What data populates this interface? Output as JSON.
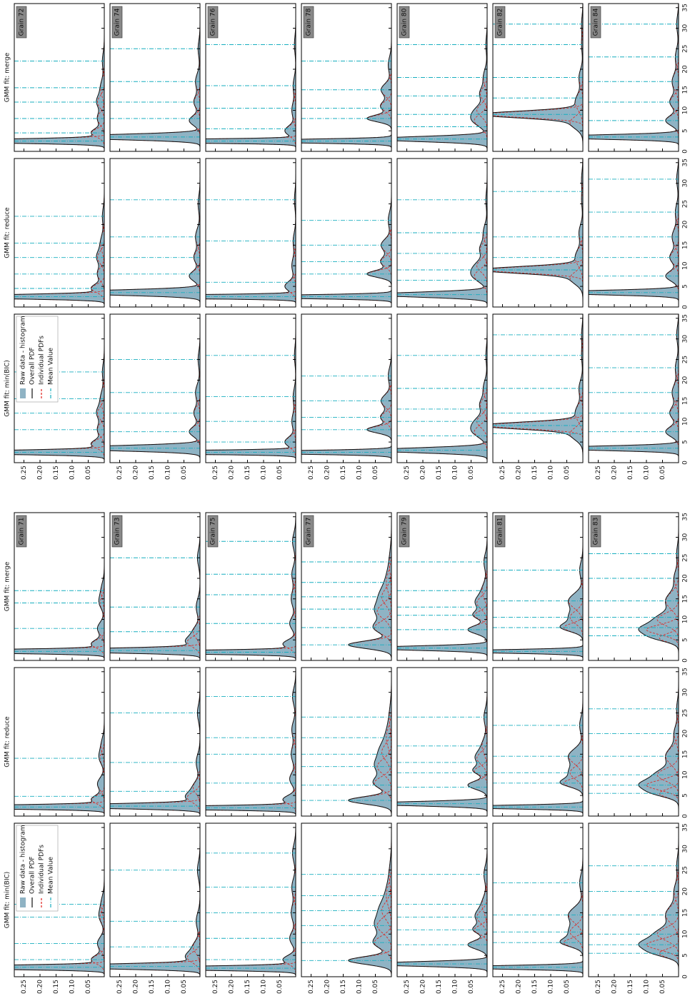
{
  "chart_data": {
    "type": "gmm-grid",
    "methods": [
      "GMM fit: min(BIC)",
      "GMM fit: reduce",
      "GMM fit: merge"
    ],
    "legend": [
      "Raw data - histogram",
      "Overall PDF",
      "Individual PDFs",
      "Mean Value"
    ],
    "colors": {
      "histogram": "#8fb3c4",
      "overall": "#111111",
      "component": "#e0201b",
      "mean": "#17aebf"
    },
    "xlim": [
      0,
      36
    ],
    "xticks": [
      0,
      5,
      10,
      15,
      20,
      25,
      30,
      35
    ],
    "ylim": [
      0,
      0.28
    ],
    "yticks": [
      0.05,
      {
        "value": 0.1,
        "label": "0.10"
      },
      0.15,
      {
        "value": 0.2,
        "label": "0.20"
      },
      0.25
    ],
    "grains": [
      {
        "label": "Grain 71",
        "components": [
          [
            2.2,
            0.4,
            0.72
          ],
          [
            4,
            1,
            0.1
          ],
          [
            7.8,
            1.5,
            0.08
          ],
          [
            14,
            1.5,
            0.05
          ],
          [
            17,
            2,
            0.05
          ]
        ],
        "means": [
          [
            2.2,
            4,
            7.8,
            14,
            17
          ],
          [
            2.2,
            4.8,
            14
          ],
          [
            2.2,
            7.8,
            14,
            17
          ]
        ]
      },
      {
        "label": "Grain 73",
        "components": [
          [
            2.4,
            0.5,
            0.7
          ],
          [
            4.5,
            1.2,
            0.12
          ],
          [
            7,
            1.5,
            0.08
          ],
          [
            13,
            2,
            0.06
          ],
          [
            25,
            2,
            0.04
          ]
        ],
        "means": [
          [
            2.4,
            7,
            13,
            25
          ],
          [
            2.4,
            6,
            13,
            25
          ],
          [
            2.4,
            7,
            13,
            25
          ]
        ]
      },
      {
        "label": "Grain 75",
        "components": [
          [
            2,
            0.4,
            0.65
          ],
          [
            4,
            1,
            0.1
          ],
          [
            9,
            1.5,
            0.07
          ],
          [
            15,
            2,
            0.07
          ],
          [
            21,
            2,
            0.06
          ],
          [
            29,
            2,
            0.05
          ]
        ],
        "means": [
          [
            2,
            4,
            9,
            15,
            21,
            29
          ],
          [
            2,
            8,
            15,
            19,
            29
          ],
          [
            2,
            9,
            16,
            21,
            29
          ]
        ]
      },
      {
        "label": "Grain 77",
        "components": [
          [
            3.8,
            0.9,
            0.3
          ],
          [
            8,
            1.5,
            0.2
          ],
          [
            12,
            1.8,
            0.2
          ],
          [
            15.5,
            2,
            0.15
          ],
          [
            19,
            2.5,
            0.1
          ],
          [
            24,
            3,
            0.05
          ]
        ],
        "means": [
          [
            3.8,
            8,
            12,
            15.5,
            19,
            24
          ],
          [
            3.8,
            7.5,
            12,
            15,
            19,
            24
          ],
          [
            3.8,
            8,
            12.5,
            15.5,
            19,
            24
          ]
        ]
      },
      {
        "label": "Grain 79",
        "components": [
          [
            3,
            0.5,
            0.5
          ],
          [
            7.5,
            1,
            0.15
          ],
          [
            11,
            1,
            0.1
          ],
          [
            14,
            1.5,
            0.12
          ],
          [
            17,
            2,
            0.08
          ],
          [
            24,
            2,
            0.05
          ]
        ],
        "means": [
          [
            3,
            7.5,
            11,
            14,
            17,
            24
          ],
          [
            3,
            7,
            10.5,
            13,
            17,
            24
          ],
          [
            3,
            7.5,
            11,
            13,
            17,
            24
          ]
        ]
      },
      {
        "label": "Grain 81",
        "components": [
          [
            2.2,
            0.4,
            0.45
          ],
          [
            8,
            1,
            0.15
          ],
          [
            10.5,
            1.5,
            0.15
          ],
          [
            14.5,
            1.8,
            0.2
          ],
          [
            22,
            2,
            0.05
          ]
        ],
        "means": [
          [
            2.2,
            8,
            10.5,
            14.5,
            22
          ],
          [
            2.2,
            8,
            10.5,
            14.5,
            22
          ],
          [
            2.2,
            8,
            10.5,
            14.5,
            22
          ]
        ]
      },
      {
        "label": "Grain 83",
        "components": [
          [
            7.5,
            1.2,
            0.3
          ],
          [
            5.5,
            1,
            0.15
          ],
          [
            10,
            1.5,
            0.25
          ],
          [
            14.5,
            2,
            0.2
          ],
          [
            20,
            2,
            0.07
          ],
          [
            26,
            2,
            0.03
          ]
        ],
        "means": [
          [
            5.5,
            7.5,
            10,
            14.5,
            20,
            26
          ],
          [
            5.5,
            7.5,
            10,
            14.5,
            20,
            26
          ],
          [
            6,
            8,
            10.5,
            14.5,
            20,
            26
          ]
        ]
      },
      {
        "label": "Grain 72",
        "components": [
          [
            2.5,
            0.45,
            0.65
          ],
          [
            4.5,
            1,
            0.1
          ],
          [
            8,
            1.5,
            0.08
          ],
          [
            12,
            1.5,
            0.08
          ],
          [
            15.5,
            2,
            0.06
          ],
          [
            22,
            2,
            0.03
          ]
        ],
        "means": [
          [
            2.5,
            8,
            12,
            15.5,
            22
          ],
          [
            2.5,
            4.5,
            8,
            12,
            15.5,
            22
          ],
          [
            2.5,
            4.5,
            8,
            12,
            15.5,
            22
          ]
        ]
      },
      {
        "label": "Grain 74",
        "components": [
          [
            3.5,
            0.6,
            0.7
          ],
          [
            7.5,
            1.2,
            0.1
          ],
          [
            12,
            1.5,
            0.07
          ],
          [
            17,
            2,
            0.07
          ],
          [
            25,
            2,
            0.03
          ]
        ],
        "means": [
          [
            3.5,
            7.5,
            12,
            17,
            25
          ],
          [
            3.5,
            8,
            12,
            17,
            26
          ],
          [
            3.5,
            8,
            12,
            17,
            25
          ]
        ]
      },
      {
        "label": "Grain 76",
        "components": [
          [
            2.5,
            0.35,
            0.8
          ],
          [
            5,
            1.2,
            0.1
          ],
          [
            10,
            2,
            0.06
          ],
          [
            16,
            2,
            0.04
          ],
          [
            26,
            2,
            0.02
          ]
        ],
        "means": [
          [
            2.5,
            5,
            10,
            16,
            26
          ],
          [
            2.5,
            6,
            16,
            26
          ],
          [
            2.5,
            5.5,
            10.5,
            16,
            26
          ]
        ]
      },
      {
        "label": "Grain 78",
        "components": [
          [
            2.5,
            0.4,
            0.55
          ],
          [
            8,
            0.8,
            0.15
          ],
          [
            11,
            1.2,
            0.1
          ],
          [
            15,
            1.5,
            0.12
          ],
          [
            21,
            2,
            0.05
          ]
        ],
        "means": [
          [
            2.5,
            8,
            11,
            15,
            21
          ],
          [
            2.5,
            8,
            11,
            15,
            21
          ],
          [
            2.5,
            8,
            10.5,
            15,
            22
          ]
        ]
      },
      {
        "label": "Grain 80",
        "components": [
          [
            3,
            0.6,
            0.55
          ],
          [
            7.5,
            1.5,
            0.15
          ],
          [
            10,
            1.5,
            0.12
          ],
          [
            14,
            1.5,
            0.08
          ],
          [
            18,
            2,
            0.06
          ],
          [
            26,
            2,
            0.02
          ]
        ],
        "means": [
          [
            3,
            6.5,
            10,
            13,
            18,
            26
          ],
          [
            3,
            6.5,
            9,
            13,
            18,
            26
          ],
          [
            3,
            6,
            9,
            13.5,
            18,
            26
          ]
        ]
      },
      {
        "label": "Grain 82",
        "components": [
          [
            9,
            0.8,
            0.6
          ],
          [
            7,
            1.5,
            0.15
          ],
          [
            12,
            2,
            0.12
          ],
          [
            18,
            2,
            0.06
          ],
          [
            26,
            2,
            0.02
          ],
          [
            31,
            2,
            0.02
          ]
        ],
        "means": [
          [
            7,
            9,
            12,
            18,
            26,
            31
          ],
          [
            9,
            12,
            17,
            28
          ],
          [
            9,
            13,
            18,
            26,
            31
          ]
        ]
      },
      {
        "label": "Grain 84",
        "components": [
          [
            3.5,
            0.5,
            0.55
          ],
          [
            7.5,
            1.2,
            0.12
          ],
          [
            12,
            1.5,
            0.1
          ],
          [
            17,
            2,
            0.1
          ],
          [
            23,
            2,
            0.05
          ],
          [
            31,
            2,
            0.03
          ]
        ],
        "means": [
          [
            3.5,
            7.5,
            12,
            17,
            23,
            31
          ],
          [
            3.5,
            7.5,
            12,
            17,
            23,
            31
          ],
          [
            3.5,
            7.5,
            12,
            17,
            23,
            31
          ]
        ]
      }
    ]
  }
}
